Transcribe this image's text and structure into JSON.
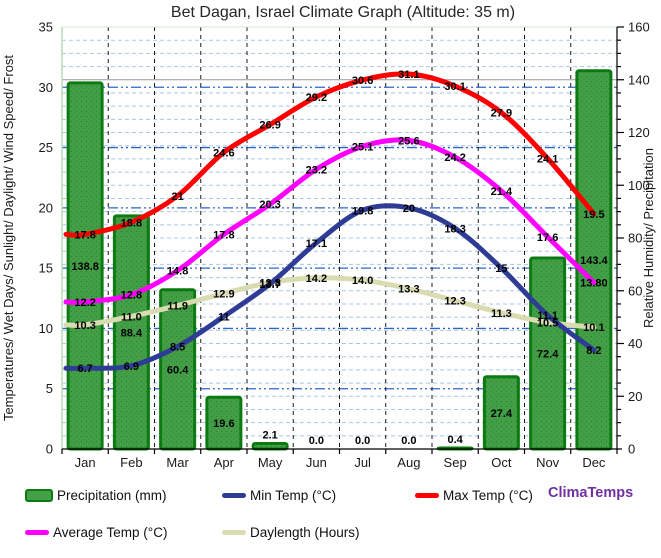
{
  "title": "Bet Dagan, Israel Climate Graph (Altitude: 35 m)",
  "watermark": {
    "text": "ClimaTemps",
    "color": "#7030a0"
  },
  "axes": {
    "left_label": "Temperatures/ Wet Days/ Sunlight/ Daylight/ Wind Speed/ Frost",
    "right_label": "Relative Humidity/ Precipitation",
    "left_ticks": [
      0,
      5,
      10,
      15,
      20,
      25,
      30,
      35
    ],
    "right_ticks": [
      0,
      20,
      40,
      60,
      80,
      100,
      120,
      140,
      160
    ]
  },
  "legend": [
    {
      "label": "Precipitation (mm)",
      "type": "bar",
      "color": "#43a047"
    },
    {
      "label": "Min Temp (°C)",
      "type": "line",
      "color": "#2e3c96"
    },
    {
      "label": "Max Temp (°C)",
      "type": "line",
      "color": "#fe0000"
    },
    {
      "label": "Average Temp (°C)",
      "type": "line",
      "color": "#ff00ff"
    },
    {
      "label": "Daylength (Hours)",
      "type": "line",
      "color": "#d9dbb0"
    }
  ],
  "chart_data": {
    "type": "bar+line combo",
    "categories": [
      "Jan",
      "Feb",
      "Mar",
      "Apr",
      "May",
      "Jun",
      "Jul",
      "Aug",
      "Sep",
      "Oct",
      "Nov",
      "Dec"
    ],
    "ylim_left": [
      0,
      35
    ],
    "ylim_right": [
      0,
      160
    ],
    "grid": {
      "horizontal_major_color": "#2b65cc",
      "horizontal_minor_color": "#a9c7e5",
      "vertical_color": "#1a1a1a",
      "reference_line_right_value": 140,
      "reference_line_color": "#999999"
    },
    "series": [
      {
        "name": "Precipitation (mm)",
        "type": "bar",
        "axis": "right",
        "color": "#43a047",
        "border_color": "#0c7a12",
        "values": [
          138.8,
          88.4,
          60.4,
          19.6,
          2.1,
          0.0,
          0.0,
          0.0,
          0.4,
          27.4,
          72.4,
          143.4
        ],
        "labels": [
          "138.8",
          "88.4",
          "60.4",
          "19.6",
          "2.1",
          "0.0",
          "0.0",
          "0.0",
          "0.4",
          "27.4",
          "72.4",
          "143.4"
        ]
      },
      {
        "name": "Daylength (Hours)",
        "type": "line",
        "axis": "left",
        "color": "#d9dbb0",
        "values": [
          10.3,
          11.0,
          11.9,
          12.9,
          13.8,
          14.2,
          14.0,
          13.3,
          12.3,
          11.3,
          10.5,
          10.1
        ],
        "labels": [
          "10.3",
          "11.0",
          "11.9",
          "12.9",
          "13.8",
          "14.2",
          "14.0",
          "13.3",
          "12.3",
          "11.3",
          "10.5",
          "10.1"
        ]
      },
      {
        "name": "Min Temp (°C)",
        "type": "line",
        "axis": "left",
        "color": "#2e3c96",
        "values": [
          6.7,
          6.9,
          8.5,
          11,
          13.7,
          17.1,
          19.8,
          20,
          18.3,
          15,
          11.1,
          8.2
        ],
        "labels": [
          "6.7",
          "6.9",
          "8.5",
          "11",
          "13.7",
          "17.1",
          "19.8",
          "20",
          "18.3",
          "15",
          "11.1",
          "8.2"
        ]
      },
      {
        "name": "Average Temp (°C)",
        "type": "line",
        "axis": "left",
        "color": "#ff00ff",
        "values": [
          12.2,
          12.8,
          14.8,
          17.8,
          20.3,
          23.2,
          25.1,
          25.6,
          24.2,
          21.4,
          17.6,
          13.8
        ],
        "labels": [
          "12.2",
          "12.8",
          "14.8",
          "17.8",
          "20.3",
          "23.2",
          "25.1",
          "25.6",
          "24.2",
          "21.4",
          "17.6",
          "13.80"
        ]
      },
      {
        "name": "Max Temp (°C)",
        "type": "line",
        "axis": "left",
        "color": "#fe0000",
        "values": [
          17.8,
          18.8,
          21,
          24.6,
          26.9,
          29.2,
          30.6,
          31.1,
          30.1,
          27.9,
          24.1,
          19.5
        ],
        "labels": [
          "17.8",
          "18.8",
          "21",
          "24.6",
          "26.9",
          "29.2",
          "30.6",
          "31.1",
          "30.1",
          "27.9",
          "24.1",
          "19.5"
        ]
      }
    ]
  }
}
